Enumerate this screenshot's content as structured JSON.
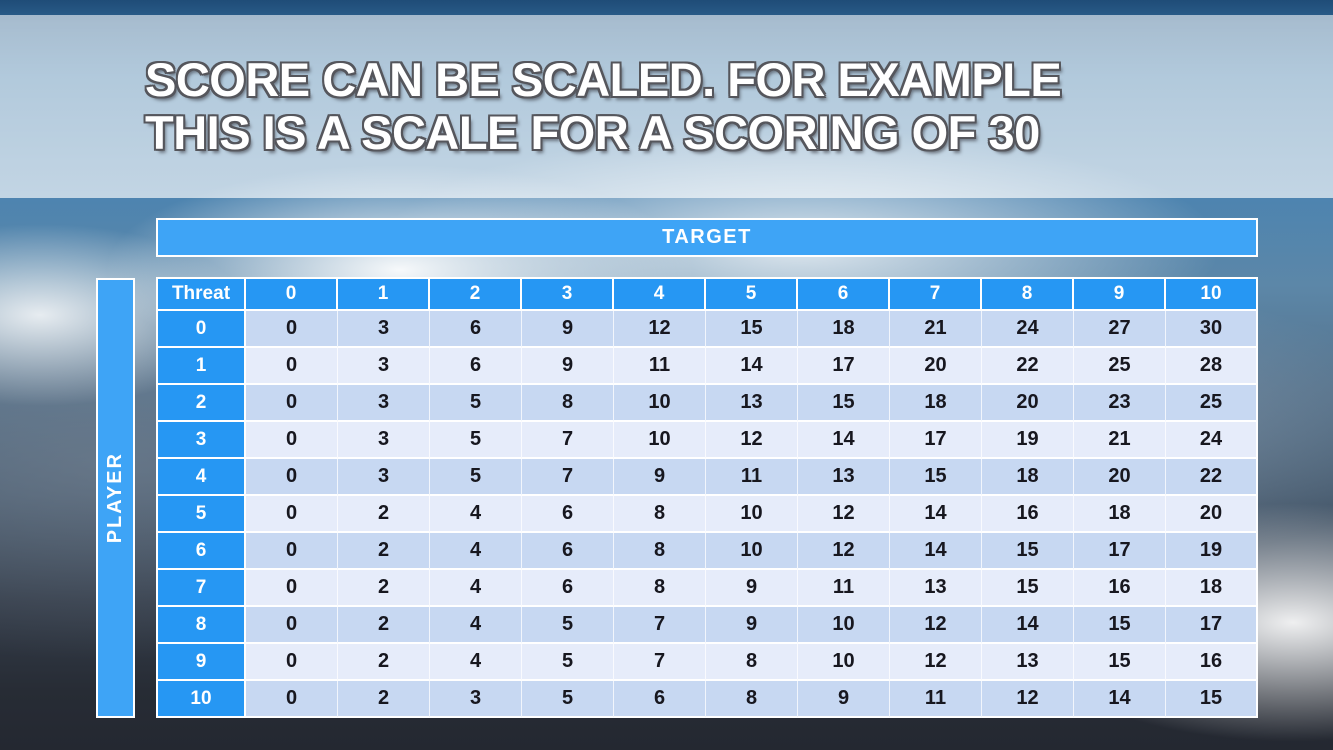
{
  "slide": {
    "title_line1": "SCORE CAN BE SCALED. FOR EXAMPLE",
    "title_line2": "THIS IS A SCALE FOR A SCORING OF 30"
  },
  "table": {
    "target_label": "TARGET",
    "player_label": "PLAYER",
    "corner_label": "Threat",
    "column_headers": [
      "0",
      "1",
      "2",
      "3",
      "4",
      "5",
      "6",
      "7",
      "8",
      "9",
      "10"
    ],
    "row_headers": [
      "0",
      "1",
      "2",
      "3",
      "4",
      "5",
      "6",
      "7",
      "8",
      "9",
      "10"
    ],
    "rows": [
      [
        "0",
        "3",
        "6",
        "9",
        "12",
        "15",
        "18",
        "21",
        "24",
        "27",
        "30"
      ],
      [
        "0",
        "3",
        "6",
        "9",
        "11",
        "14",
        "17",
        "20",
        "22",
        "25",
        "28"
      ],
      [
        "0",
        "3",
        "5",
        "8",
        "10",
        "13",
        "15",
        "18",
        "20",
        "23",
        "25"
      ],
      [
        "0",
        "3",
        "5",
        "7",
        "10",
        "12",
        "14",
        "17",
        "19",
        "21",
        "24"
      ],
      [
        "0",
        "3",
        "5",
        "7",
        "9",
        "11",
        "13",
        "15",
        "18",
        "20",
        "22"
      ],
      [
        "0",
        "2",
        "4",
        "6",
        "8",
        "10",
        "12",
        "14",
        "16",
        "18",
        "20"
      ],
      [
        "0",
        "2",
        "4",
        "6",
        "8",
        "10",
        "12",
        "14",
        "15",
        "17",
        "19"
      ],
      [
        "0",
        "2",
        "4",
        "6",
        "8",
        "9",
        "11",
        "13",
        "15",
        "16",
        "18"
      ],
      [
        "0",
        "2",
        "4",
        "5",
        "7",
        "9",
        "10",
        "12",
        "14",
        "15",
        "17"
      ],
      [
        "0",
        "2",
        "4",
        "5",
        "7",
        "8",
        "10",
        "12",
        "13",
        "15",
        "16"
      ],
      [
        "0",
        "2",
        "3",
        "5",
        "6",
        "8",
        "9",
        "11",
        "12",
        "14",
        "15"
      ]
    ]
  },
  "colors": {
    "bar_blue": "#3ea4f6",
    "header_blue": "#2697f3",
    "row_even_bg": "#c7d8f2",
    "row_odd_bg": "#e6ecfa",
    "body_text": "#17171f",
    "table_border": "#ffffff"
  }
}
